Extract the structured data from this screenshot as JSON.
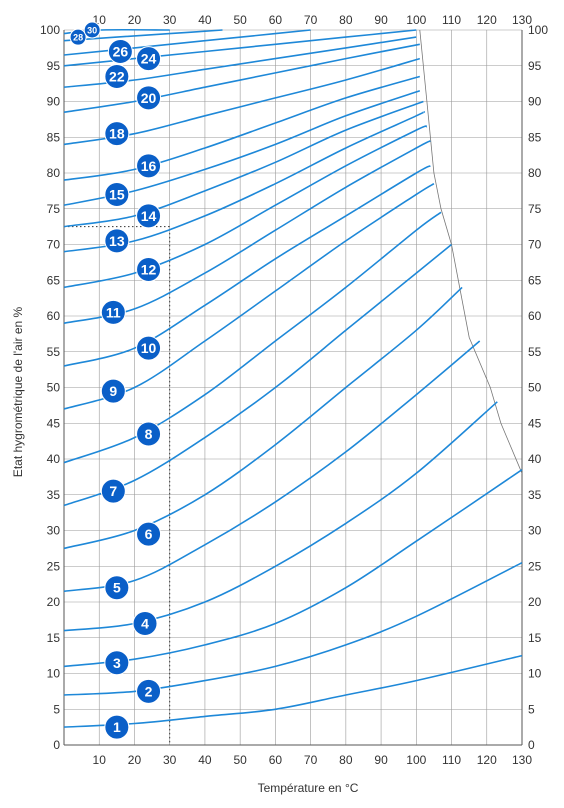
{
  "chart_data": {
    "type": "line",
    "xlabel": "Température en °C",
    "ylabel": "Etat hygrométrique de l'air en %",
    "xlim": [
      0,
      130
    ],
    "ylim": [
      0,
      100
    ],
    "x_ticks_bottom": [
      10,
      20,
      30,
      40,
      50,
      60,
      70,
      80,
      90,
      100,
      110,
      120,
      130
    ],
    "x_ticks_top": [
      10,
      20,
      30,
      40,
      50,
      60,
      70,
      80,
      90,
      100,
      110,
      120,
      130
    ],
    "y_ticks_left": [
      0,
      5,
      10,
      15,
      20,
      25,
      30,
      35,
      40,
      45,
      50,
      55,
      60,
      65,
      70,
      75,
      80,
      85,
      90,
      95,
      100
    ],
    "y_ticks_right": [
      0,
      5,
      10,
      15,
      20,
      25,
      30,
      35,
      40,
      45,
      50,
      55,
      60,
      65,
      70,
      75,
      80,
      85,
      90,
      95,
      100
    ],
    "grid": true,
    "line_color": "#1e88d8",
    "badge_color": "#0a5fc8",
    "reference_line": {
      "x": 30,
      "y": 72.5,
      "style": "dotted"
    },
    "boundary": [
      [
        101,
        100
      ],
      [
        103,
        90
      ],
      [
        105,
        80
      ],
      [
        107,
        75
      ],
      [
        110,
        70
      ],
      [
        115,
        57
      ],
      [
        121,
        50
      ],
      [
        124,
        45
      ],
      [
        130,
        38
      ]
    ],
    "series": [
      {
        "name": "1",
        "label_at": [
          15,
          2.5
        ],
        "points": [
          [
            0,
            2.5
          ],
          [
            20,
            3.0
          ],
          [
            40,
            4.0
          ],
          [
            60,
            5.0
          ],
          [
            80,
            7.0
          ],
          [
            100,
            9.0
          ],
          [
            130,
            12.5
          ]
        ]
      },
      {
        "name": "2",
        "label_at": [
          24,
          7.5
        ],
        "points": [
          [
            0,
            7.0
          ],
          [
            20,
            7.5
          ],
          [
            40,
            9.0
          ],
          [
            60,
            11.0
          ],
          [
            80,
            14.0
          ],
          [
            100,
            18.0
          ],
          [
            130,
            25.5
          ]
        ]
      },
      {
        "name": "3",
        "label_at": [
          15,
          11.5
        ],
        "points": [
          [
            0,
            11.0
          ],
          [
            20,
            12.0
          ],
          [
            40,
            14.0
          ],
          [
            60,
            17.0
          ],
          [
            80,
            22.0
          ],
          [
            100,
            28.5
          ],
          [
            130,
            38.5
          ]
        ]
      },
      {
        "name": "4",
        "label_at": [
          23,
          17.0
        ],
        "points": [
          [
            0,
            16.0
          ],
          [
            20,
            17.0
          ],
          [
            40,
            20.0
          ],
          [
            60,
            25.0
          ],
          [
            80,
            31.0
          ],
          [
            100,
            38.0
          ],
          [
            123,
            48.0
          ]
        ]
      },
      {
        "name": "5",
        "label_at": [
          15,
          22.0
        ],
        "points": [
          [
            0,
            21.5
          ],
          [
            20,
            23.0
          ],
          [
            40,
            28.0
          ],
          [
            60,
            34.0
          ],
          [
            80,
            41.0
          ],
          [
            100,
            49.0
          ],
          [
            118,
            56.5
          ]
        ]
      },
      {
        "name": "6",
        "label_at": [
          24,
          29.5
        ],
        "points": [
          [
            0,
            27.5
          ],
          [
            20,
            30.0
          ],
          [
            40,
            35.0
          ],
          [
            60,
            42.0
          ],
          [
            80,
            50.0
          ],
          [
            100,
            58.0
          ],
          [
            113,
            64.0
          ]
        ]
      },
      {
        "name": "7",
        "label_at": [
          14,
          35.5
        ],
        "points": [
          [
            0,
            33.5
          ],
          [
            20,
            37.0
          ],
          [
            40,
            43.0
          ],
          [
            60,
            50.0
          ],
          [
            80,
            58.0
          ],
          [
            100,
            66.0
          ],
          [
            110,
            70.0
          ]
        ]
      },
      {
        "name": "8",
        "label_at": [
          24,
          43.5
        ],
        "points": [
          [
            0,
            39.5
          ],
          [
            20,
            43.0
          ],
          [
            40,
            49.0
          ],
          [
            60,
            56.5
          ],
          [
            80,
            64.0
          ],
          [
            100,
            72.0
          ],
          [
            107,
            74.5
          ]
        ]
      },
      {
        "name": "9",
        "label_at": [
          14,
          49.5
        ],
        "points": [
          [
            0,
            47.0
          ],
          [
            20,
            50.0
          ],
          [
            40,
            56.5
          ],
          [
            60,
            63.5
          ],
          [
            80,
            70.5
          ],
          [
            100,
            77.0
          ],
          [
            105,
            78.5
          ]
        ]
      },
      {
        "name": "10",
        "label_at": [
          24,
          55.5
        ],
        "points": [
          [
            0,
            53.0
          ],
          [
            20,
            55.5
          ],
          [
            40,
            61.5
          ],
          [
            60,
            68.0
          ],
          [
            80,
            74.0
          ],
          [
            100,
            80.0
          ],
          [
            104,
            81.0
          ]
        ]
      },
      {
        "name": "11",
        "label_at": [
          14,
          60.5
        ],
        "points": [
          [
            0,
            59.0
          ],
          [
            20,
            61.0
          ],
          [
            40,
            66.0
          ],
          [
            60,
            72.0
          ],
          [
            80,
            78.0
          ],
          [
            100,
            83.5
          ],
          [
            104,
            84.5
          ]
        ]
      },
      {
        "name": "12",
        "label_at": [
          24,
          66.5
        ],
        "points": [
          [
            0,
            64.0
          ],
          [
            20,
            66.0
          ],
          [
            40,
            70.0
          ],
          [
            60,
            75.5
          ],
          [
            80,
            81.0
          ],
          [
            100,
            86.0
          ],
          [
            103,
            86.5
          ]
        ]
      },
      {
        "name": "13",
        "label_at": [
          15,
          70.5
        ],
        "points": [
          [
            0,
            69.0
          ],
          [
            20,
            70.5
          ],
          [
            40,
            74.0
          ],
          [
            60,
            78.5
          ],
          [
            80,
            83.5
          ],
          [
            100,
            88.0
          ],
          [
            102,
            88.5
          ]
        ]
      },
      {
        "name": "14",
        "label_at": [
          24,
          74.0
        ],
        "points": [
          [
            0,
            72.5
          ],
          [
            20,
            74.0
          ],
          [
            40,
            77.5
          ],
          [
            60,
            81.5
          ],
          [
            80,
            86.0
          ],
          [
            102,
            90.0
          ]
        ]
      },
      {
        "name": "15",
        "label_at": [
          15,
          77.0
        ],
        "points": [
          [
            0,
            75.5
          ],
          [
            20,
            77.5
          ],
          [
            40,
            80.5
          ],
          [
            60,
            84.0
          ],
          [
            80,
            88.0
          ],
          [
            101,
            91.5
          ]
        ]
      },
      {
        "name": "16",
        "label_at": [
          24,
          81.0
        ],
        "points": [
          [
            0,
            79.0
          ],
          [
            20,
            80.5
          ],
          [
            40,
            83.5
          ],
          [
            60,
            87.0
          ],
          [
            80,
            90.5
          ],
          [
            101,
            93.5
          ]
        ]
      },
      {
        "name": "18",
        "label_at": [
          15,
          85.5
        ],
        "points": [
          [
            0,
            84.0
          ],
          [
            20,
            85.5
          ],
          [
            40,
            88.0
          ],
          [
            60,
            90.5
          ],
          [
            80,
            93.0
          ],
          [
            101,
            96.0
          ]
        ]
      },
      {
        "name": "20",
        "label_at": [
          24,
          90.5
        ],
        "points": [
          [
            0,
            88.5
          ],
          [
            20,
            90.0
          ],
          [
            40,
            92.0
          ],
          [
            60,
            94.0
          ],
          [
            80,
            96.0
          ],
          [
            101,
            98.0
          ]
        ]
      },
      {
        "name": "22",
        "label_at": [
          15,
          93.5
        ],
        "points": [
          [
            0,
            92.0
          ],
          [
            20,
            93.0
          ],
          [
            40,
            94.5
          ],
          [
            60,
            96.0
          ],
          [
            80,
            97.5
          ],
          [
            100,
            99.0
          ]
        ]
      },
      {
        "name": "24",
        "label_at": [
          24,
          96.0
        ],
        "points": [
          [
            0,
            95.0
          ],
          [
            20,
            96.0
          ],
          [
            40,
            97.0
          ],
          [
            60,
            98.0
          ],
          [
            80,
            99.0
          ],
          [
            100,
            100.0
          ]
        ]
      },
      {
        "name": "26",
        "label_at": [
          16,
          97.0
        ],
        "points": [
          [
            0,
            96.5
          ],
          [
            20,
            97.5
          ],
          [
            40,
            98.5
          ],
          [
            60,
            99.5
          ],
          [
            70,
            100.0
          ]
        ]
      },
      {
        "name": "28",
        "label_at": [
          4,
          99.0
        ],
        "points": [
          [
            0,
            98.5
          ],
          [
            15,
            99.0
          ],
          [
            30,
            99.5
          ],
          [
            45,
            100.0
          ]
        ]
      },
      {
        "name": "30",
        "label_at": [
          8,
          100.0
        ],
        "points": [
          [
            0,
            99.5
          ],
          [
            10,
            100.0
          ],
          [
            30,
            100.0
          ]
        ]
      }
    ]
  }
}
